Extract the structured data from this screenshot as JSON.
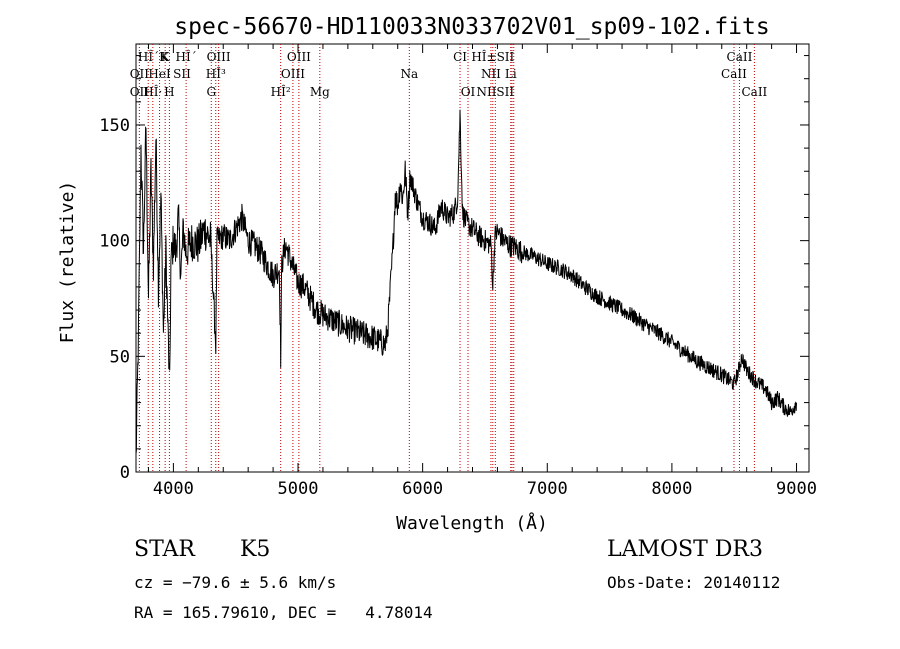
{
  "chart_data": {
    "type": "line",
    "title": "spec-56670-HD110033N033702V01_sp09-102.fits",
    "xlabel": "Wavelength (Å)",
    "ylabel": "Flux (relative)",
    "xlim": [
      3700,
      9100
    ],
    "ylim": [
      0,
      185
    ],
    "xticks": [
      4000,
      5000,
      6000,
      7000,
      8000,
      9000
    ],
    "yticks": [
      0,
      50,
      100,
      150
    ],
    "grid": false,
    "series": [
      {
        "x": [
          3700,
          3720,
          3740,
          3760,
          3780,
          3800,
          3820,
          3840,
          3860,
          3880,
          3900,
          3920,
          3940,
          3960,
          3970,
          3980,
          4000,
          4020,
          4040,
          4060,
          4080,
          4100,
          4150,
          4200,
          4250,
          4300,
          4340,
          4350,
          4400,
          4450,
          4500,
          4550,
          4600,
          4650,
          4700,
          4750,
          4800,
          4850,
          4861,
          4870,
          4900,
          4950,
          5000,
          5050,
          5100,
          5150,
          5200,
          5300,
          5400,
          5500,
          5600,
          5700,
          5720,
          5760,
          5780,
          5800,
          5820,
          5840,
          5860,
          5880,
          5900,
          5950,
          6000,
          6050,
          6100,
          6150,
          6200,
          6250,
          6280,
          6300,
          6320,
          6350,
          6400,
          6450,
          6500,
          6550,
          6563,
          6580,
          6600,
          6650,
          6700,
          6750,
          6800,
          6900,
          7000,
          7100,
          7200,
          7300,
          7400,
          7500,
          7600,
          7700,
          7800,
          7900,
          8000,
          8100,
          8200,
          8300,
          8400,
          8450,
          8498,
          8542,
          8560,
          8600,
          8662,
          8700,
          8750,
          8800,
          8850,
          8900,
          8950,
          9000
        ],
        "y": [
          5,
          60,
          140,
          95,
          150,
          75,
          130,
          90,
          145,
          80,
          120,
          60,
          95,
          55,
          35,
          90,
          100,
          95,
          110,
          85,
          105,
          95,
          100,
          98,
          105,
          100,
          55,
          100,
          102,
          100,
          105,
          110,
          100,
          98,
          95,
          90,
          85,
          88,
          50,
          90,
          98,
          90,
          82,
          80,
          75,
          70,
          68,
          65,
          62,
          60,
          58,
          55,
          62,
          95,
          120,
          115,
          125,
          118,
          130,
          112,
          128,
          118,
          110,
          108,
          105,
          115,
          110,
          112,
          118,
          155,
          112,
          108,
          105,
          102,
          100,
          98,
          80,
          102,
          104,
          100,
          98,
          97,
          95,
          93,
          90,
          88,
          85,
          80,
          76,
          73,
          70,
          67,
          63,
          60,
          56,
          52,
          48,
          45,
          42,
          40,
          38,
          45,
          50,
          44,
          40,
          38,
          36,
          30,
          32,
          28,
          26,
          30
        ]
      }
    ],
    "line_markers": [
      {
        "label": "HÎ´K",
        "wl": 3836,
        "row": 0
      },
      {
        "label": "K",
        "wl": 3934,
        "row": 0
      },
      {
        "label": "HÎ´",
        "wl": 4102,
        "row": 0
      },
      {
        "label": "OIII",
        "wl": 4363,
        "row": 0
      },
      {
        "label": "OIII",
        "wl": 5007,
        "row": 0
      },
      {
        "label": "CI",
        "wl": 6300,
        "row": 0
      },
      {
        "label": "HÎ±SII",
        "wl": 6563,
        "row": 0
      },
      {
        "label": "CaII",
        "wl": 8542,
        "row": 0
      },
      {
        "label": "OII",
        "wl": 3727,
        "row": 1
      },
      {
        "label": "HeI",
        "wl": 3889,
        "row": 1
      },
      {
        "label": "SII",
        "wl": 4069,
        "row": 1
      },
      {
        "label": "HÎ³",
        "wl": 4340,
        "row": 1
      },
      {
        "label": "OIII",
        "wl": 4959,
        "row": 1
      },
      {
        "label": "Na",
        "wl": 5893,
        "row": 1
      },
      {
        "label": "NII",
        "wl": 6548,
        "row": 1
      },
      {
        "label": "Li",
        "wl": 6707,
        "row": 1
      },
      {
        "label": "CaII",
        "wl": 8498,
        "row": 1
      },
      {
        "label": "OII",
        "wl": 3727,
        "row": 2
      },
      {
        "label": "HÎ·",
        "wl": 3835,
        "row": 2
      },
      {
        "label": "H",
        "wl": 3968,
        "row": 2
      },
      {
        "label": "G",
        "wl": 4304,
        "row": 2
      },
      {
        "label": "HÎ²",
        "wl": 4861,
        "row": 2
      },
      {
        "label": "Mg",
        "wl": 5175,
        "row": 2
      },
      {
        "label": "OI",
        "wl": 6364,
        "row": 2
      },
      {
        "label": "NIISII",
        "wl": 6583,
        "row": 2
      },
      {
        "label": "CaII",
        "wl": 8662,
        "row": 2
      }
    ],
    "marker_lines": [
      3727,
      3798,
      3835,
      3889,
      3934,
      3968,
      4102,
      4304,
      4340,
      4363,
      4861,
      4959,
      5007,
      5175,
      5893,
      6300,
      6364,
      6548,
      6563,
      6583,
      6707,
      6717,
      6731,
      8498,
      8542,
      8662
    ]
  },
  "footer": {
    "object_class": "STAR",
    "subclass": "K5",
    "survey": "LAMOST DR3",
    "redshift": "cz = −79.6 ± 5.6 km/s",
    "obs_date": "Obs-Date: 20140112",
    "coords": "RA = 165.79610, DEC =   4.78014"
  }
}
